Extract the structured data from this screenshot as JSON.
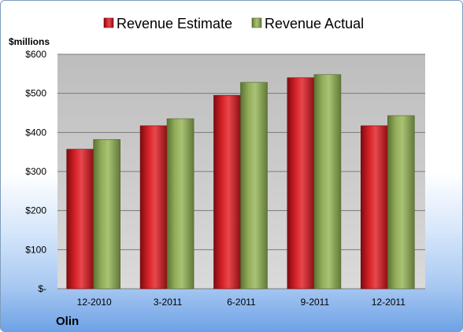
{
  "chart_data": {
    "type": "bar",
    "title": "",
    "xlabel": "",
    "ylabel": "",
    "unit_label": "$millions",
    "company": "Olin",
    "categories": [
      "12-2010",
      "3-2011",
      "6-2011",
      "9-2011",
      "12-2011"
    ],
    "series": [
      {
        "name": "Revenue Estimate",
        "values": [
          357,
          417,
          495,
          540,
          417
        ]
      },
      {
        "name": "Revenue Actual",
        "values": [
          382,
          435,
          528,
          548,
          443
        ]
      }
    ],
    "ylim": [
      0,
      600
    ],
    "y_ticks": [
      0,
      100,
      200,
      300,
      400,
      500,
      600
    ],
    "y_tick_labels": [
      "$-",
      "$100",
      "$200",
      "$300",
      "$400",
      "$500",
      "$600"
    ],
    "grid": true,
    "legend_position": "top",
    "colors": {
      "series": [
        "#c8191f",
        "#8ca453"
      ],
      "plot_background": "#c6c6c6",
      "gridline": "#7a7a7a"
    }
  }
}
